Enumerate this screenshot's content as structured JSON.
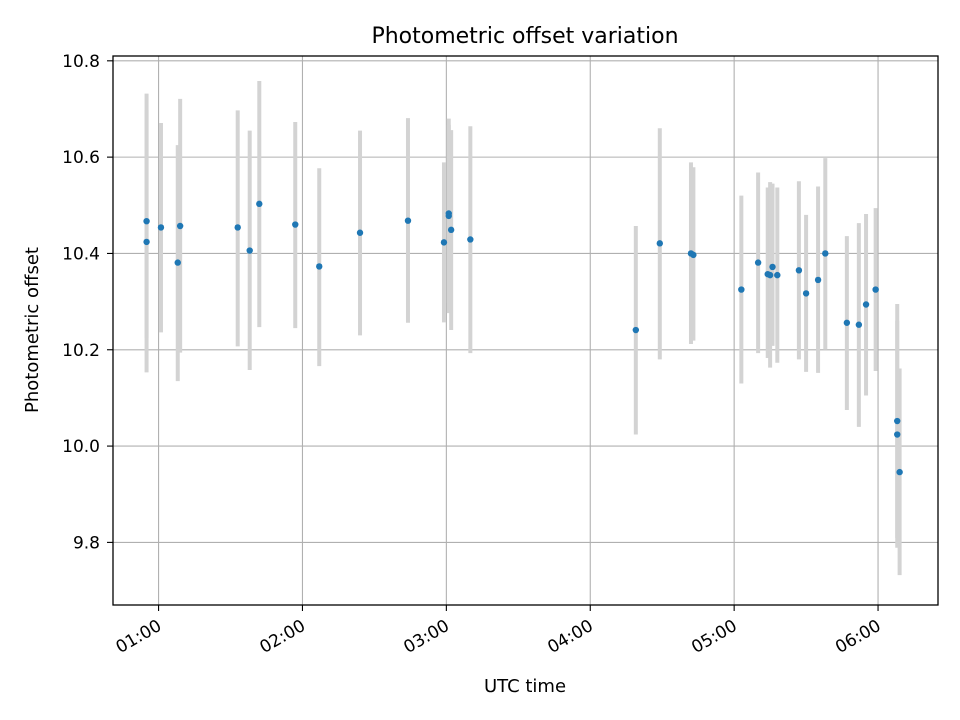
{
  "chart_data": {
    "type": "scatter",
    "title": "Photometric offset variation",
    "xlabel": "UTC time",
    "ylabel": "Photometric offset",
    "x_tick_labels": [
      "01:00",
      "02:00",
      "03:00",
      "04:00",
      "05:00",
      "06:00"
    ],
    "x_tick_values": [
      "01:00",
      "02:00",
      "03:00",
      "04:00",
      "05:00",
      "06:00"
    ],
    "y_tick_labels": [
      "9.8",
      "10.0",
      "10.2",
      "10.4",
      "10.6",
      "10.8"
    ],
    "y_tick_values": [
      9.8,
      10.0,
      10.2,
      10.4,
      10.6,
      10.8
    ],
    "xlim": [
      "00:41",
      "06:25"
    ],
    "ylim": [
      9.67,
      10.81
    ],
    "grid": true,
    "point_color": "#1f77b4",
    "errorbar_color": "#d3d3d3",
    "points": [
      {
        "x": "00:55",
        "y": 10.467,
        "err_low": 10.225,
        "err_high": 10.697
      },
      {
        "x": "00:55",
        "y": 10.424,
        "err_low": 10.153,
        "err_high": 10.732
      },
      {
        "x": "01:01",
        "y": 10.454,
        "err_low": 10.236,
        "err_high": 10.671
      },
      {
        "x": "01:08",
        "y": 10.381,
        "err_low": 10.135,
        "err_high": 10.625
      },
      {
        "x": "01:09",
        "y": 10.457,
        "err_low": 10.194,
        "err_high": 10.721
      },
      {
        "x": "01:33",
        "y": 10.454,
        "err_low": 10.207,
        "err_high": 10.697
      },
      {
        "x": "01:38",
        "y": 10.406,
        "err_low": 10.158,
        "err_high": 10.655
      },
      {
        "x": "01:42",
        "y": 10.503,
        "err_low": 10.247,
        "err_high": 10.758
      },
      {
        "x": "01:57",
        "y": 10.46,
        "err_low": 10.245,
        "err_high": 10.673
      },
      {
        "x": "02:07",
        "y": 10.373,
        "err_low": 10.166,
        "err_high": 10.577
      },
      {
        "x": "02:24",
        "y": 10.443,
        "err_low": 10.23,
        "err_high": 10.655
      },
      {
        "x": "02:44",
        "y": 10.468,
        "err_low": 10.256,
        "err_high": 10.681
      },
      {
        "x": "02:59",
        "y": 10.423,
        "err_low": 10.257,
        "err_high": 10.589
      },
      {
        "x": "03:01",
        "y": 10.478,
        "err_low": 10.276,
        "err_high": 10.68
      },
      {
        "x": "03:01",
        "y": 10.483,
        "err_low": 10.298,
        "err_high": 10.667
      },
      {
        "x": "03:02",
        "y": 10.449,
        "err_low": 10.241,
        "err_high": 10.656
      },
      {
        "x": "03:10",
        "y": 10.429,
        "err_low": 10.193,
        "err_high": 10.664
      },
      {
        "x": "04:19",
        "y": 10.241,
        "err_low": 10.024,
        "err_high": 10.457
      },
      {
        "x": "04:29",
        "y": 10.421,
        "err_low": 10.18,
        "err_high": 10.66
      },
      {
        "x": "04:42",
        "y": 10.4,
        "err_low": 10.212,
        "err_high": 10.589
      },
      {
        "x": "04:43",
        "y": 10.397,
        "err_low": 10.219,
        "err_high": 10.579
      },
      {
        "x": "05:03",
        "y": 10.325,
        "err_low": 10.13,
        "err_high": 10.52
      },
      {
        "x": "05:10",
        "y": 10.381,
        "err_low": 10.193,
        "err_high": 10.568
      },
      {
        "x": "05:14",
        "y": 10.357,
        "err_low": 10.183,
        "err_high": 10.537
      },
      {
        "x": "05:15",
        "y": 10.355,
        "err_low": 10.163,
        "err_high": 10.548
      },
      {
        "x": "05:16",
        "y": 10.372,
        "err_low": 10.208,
        "err_high": 10.545
      },
      {
        "x": "05:18",
        "y": 10.355,
        "err_low": 10.173,
        "err_high": 10.537
      },
      {
        "x": "05:27",
        "y": 10.365,
        "err_low": 10.18,
        "err_high": 10.55
      },
      {
        "x": "05:30",
        "y": 10.317,
        "err_low": 10.154,
        "err_high": 10.48
      },
      {
        "x": "05:35",
        "y": 10.345,
        "err_low": 10.152,
        "err_high": 10.539
      },
      {
        "x": "05:38",
        "y": 10.4,
        "err_low": 10.2,
        "err_high": 10.598
      },
      {
        "x": "05:47",
        "y": 10.256,
        "err_low": 10.075,
        "err_high": 10.436
      },
      {
        "x": "05:52",
        "y": 10.252,
        "err_low": 10.04,
        "err_high": 10.463
      },
      {
        "x": "05:55",
        "y": 10.294,
        "err_low": 10.105,
        "err_high": 10.482
      },
      {
        "x": "05:59",
        "y": 10.325,
        "err_low": 10.156,
        "err_high": 10.494
      },
      {
        "x": "06:08",
        "y": 10.052,
        "err_low": 9.809,
        "err_high": 10.295
      },
      {
        "x": "06:08",
        "y": 10.024,
        "err_low": 9.789,
        "err_high": 10.26
      },
      {
        "x": "06:09",
        "y": 9.946,
        "err_low": 9.732,
        "err_high": 10.161
      }
    ]
  }
}
